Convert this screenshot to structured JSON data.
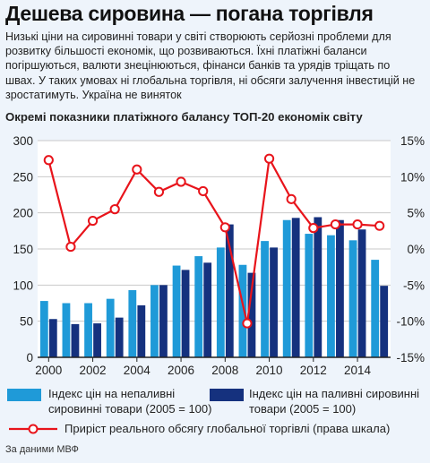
{
  "headline": "Дешева сировина — погана торгівля",
  "lede": "Низькі ціни на сировинні товари у світі створюють серйозні проблеми для розвитку більшості економік, що розвиваються. Їхні платіжні баланси погіршуються, валюти знецінюються, фінанси банків та урядів тріщать по швах. У таких умовах ні глобальна торгівля, ні обсяги залучення інвестицій не зростатимуть. Україна не виняток",
  "source": "За даними МВФ",
  "colors": {
    "background": "#eef4fb",
    "plot_bg": "#ffffff",
    "grid": "#c9c9c9",
    "nonfuel": "#1f9ad8",
    "fuel": "#15317e",
    "trade": "#e8141b"
  },
  "chart_data": {
    "type": "bar",
    "title": "Окремі показники платіжного балансу ТОП-20 економік світу",
    "x": [
      2000,
      2001,
      2002,
      2003,
      2004,
      2005,
      2006,
      2007,
      2008,
      2009,
      2010,
      2011,
      2012,
      2013,
      2014,
      2015
    ],
    "x_tick_labels": [
      "2000",
      "2002",
      "2004",
      "2006",
      "2008",
      "2010",
      "2012",
      "2014"
    ],
    "y_left": {
      "range": [
        0,
        300
      ],
      "ticks": [
        "0",
        "50",
        "100",
        "150",
        "200",
        "250",
        "300"
      ]
    },
    "y_right": {
      "range": [
        -15,
        15
      ],
      "ticks": [
        "-15%",
        "-10%",
        "-5%",
        "0%",
        "5%",
        "10%",
        "15%"
      ]
    },
    "grid": true,
    "series": [
      {
        "name": "Індекс цін на непаливні сировинні товари (2005 = 100)",
        "kind": "bar",
        "axis": "left",
        "values": [
          78,
          75,
          75,
          81,
          93,
          100,
          127,
          140,
          152,
          128,
          161,
          190,
          171,
          169,
          162,
          135
        ]
      },
      {
        "name": "Індекс цін на паливні сировинні товари (2005 = 100)",
        "kind": "bar",
        "axis": "left",
        "values": [
          53,
          46,
          47,
          55,
          72,
          100,
          121,
          131,
          184,
          117,
          152,
          193,
          194,
          190,
          177,
          99
        ]
      },
      {
        "name": "Приріст реального обсягу глобальної торгівлі (права шкала)",
        "kind": "line",
        "axis": "right",
        "values": [
          12.3,
          0.3,
          3.9,
          5.5,
          11.0,
          7.9,
          9.3,
          8.0,
          3.0,
          -10.3,
          12.5,
          6.9,
          2.9,
          3.4,
          3.4,
          3.2
        ]
      }
    ],
    "legend_placement": "bottom"
  }
}
